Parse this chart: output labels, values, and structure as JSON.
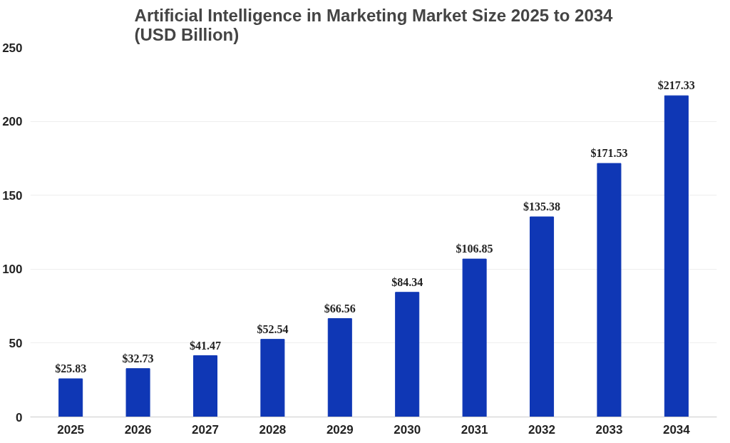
{
  "chart_data": {
    "type": "bar",
    "title": "Artificial Intelligence in Marketing Market Size 2025 to 2034 (USD Billion)",
    "categories": [
      "2025",
      "2026",
      "2027",
      "2028",
      "2029",
      "2030",
      "2031",
      "2032",
      "2033",
      "2034"
    ],
    "values": [
      25.83,
      32.73,
      41.47,
      52.54,
      66.56,
      84.34,
      106.85,
      135.38,
      171.53,
      217.33
    ],
    "value_labels": [
      "$25.83",
      "$32.73",
      "$41.47",
      "$52.54",
      "$66.56",
      "$84.34",
      "$106.85",
      "$135.38",
      "$171.53",
      "$217.33"
    ],
    "color": "#0f37b5",
    "ylim": [
      0,
      250
    ],
    "yticks": [
      0,
      50,
      100,
      150,
      200,
      250
    ],
    "grid": "y"
  }
}
